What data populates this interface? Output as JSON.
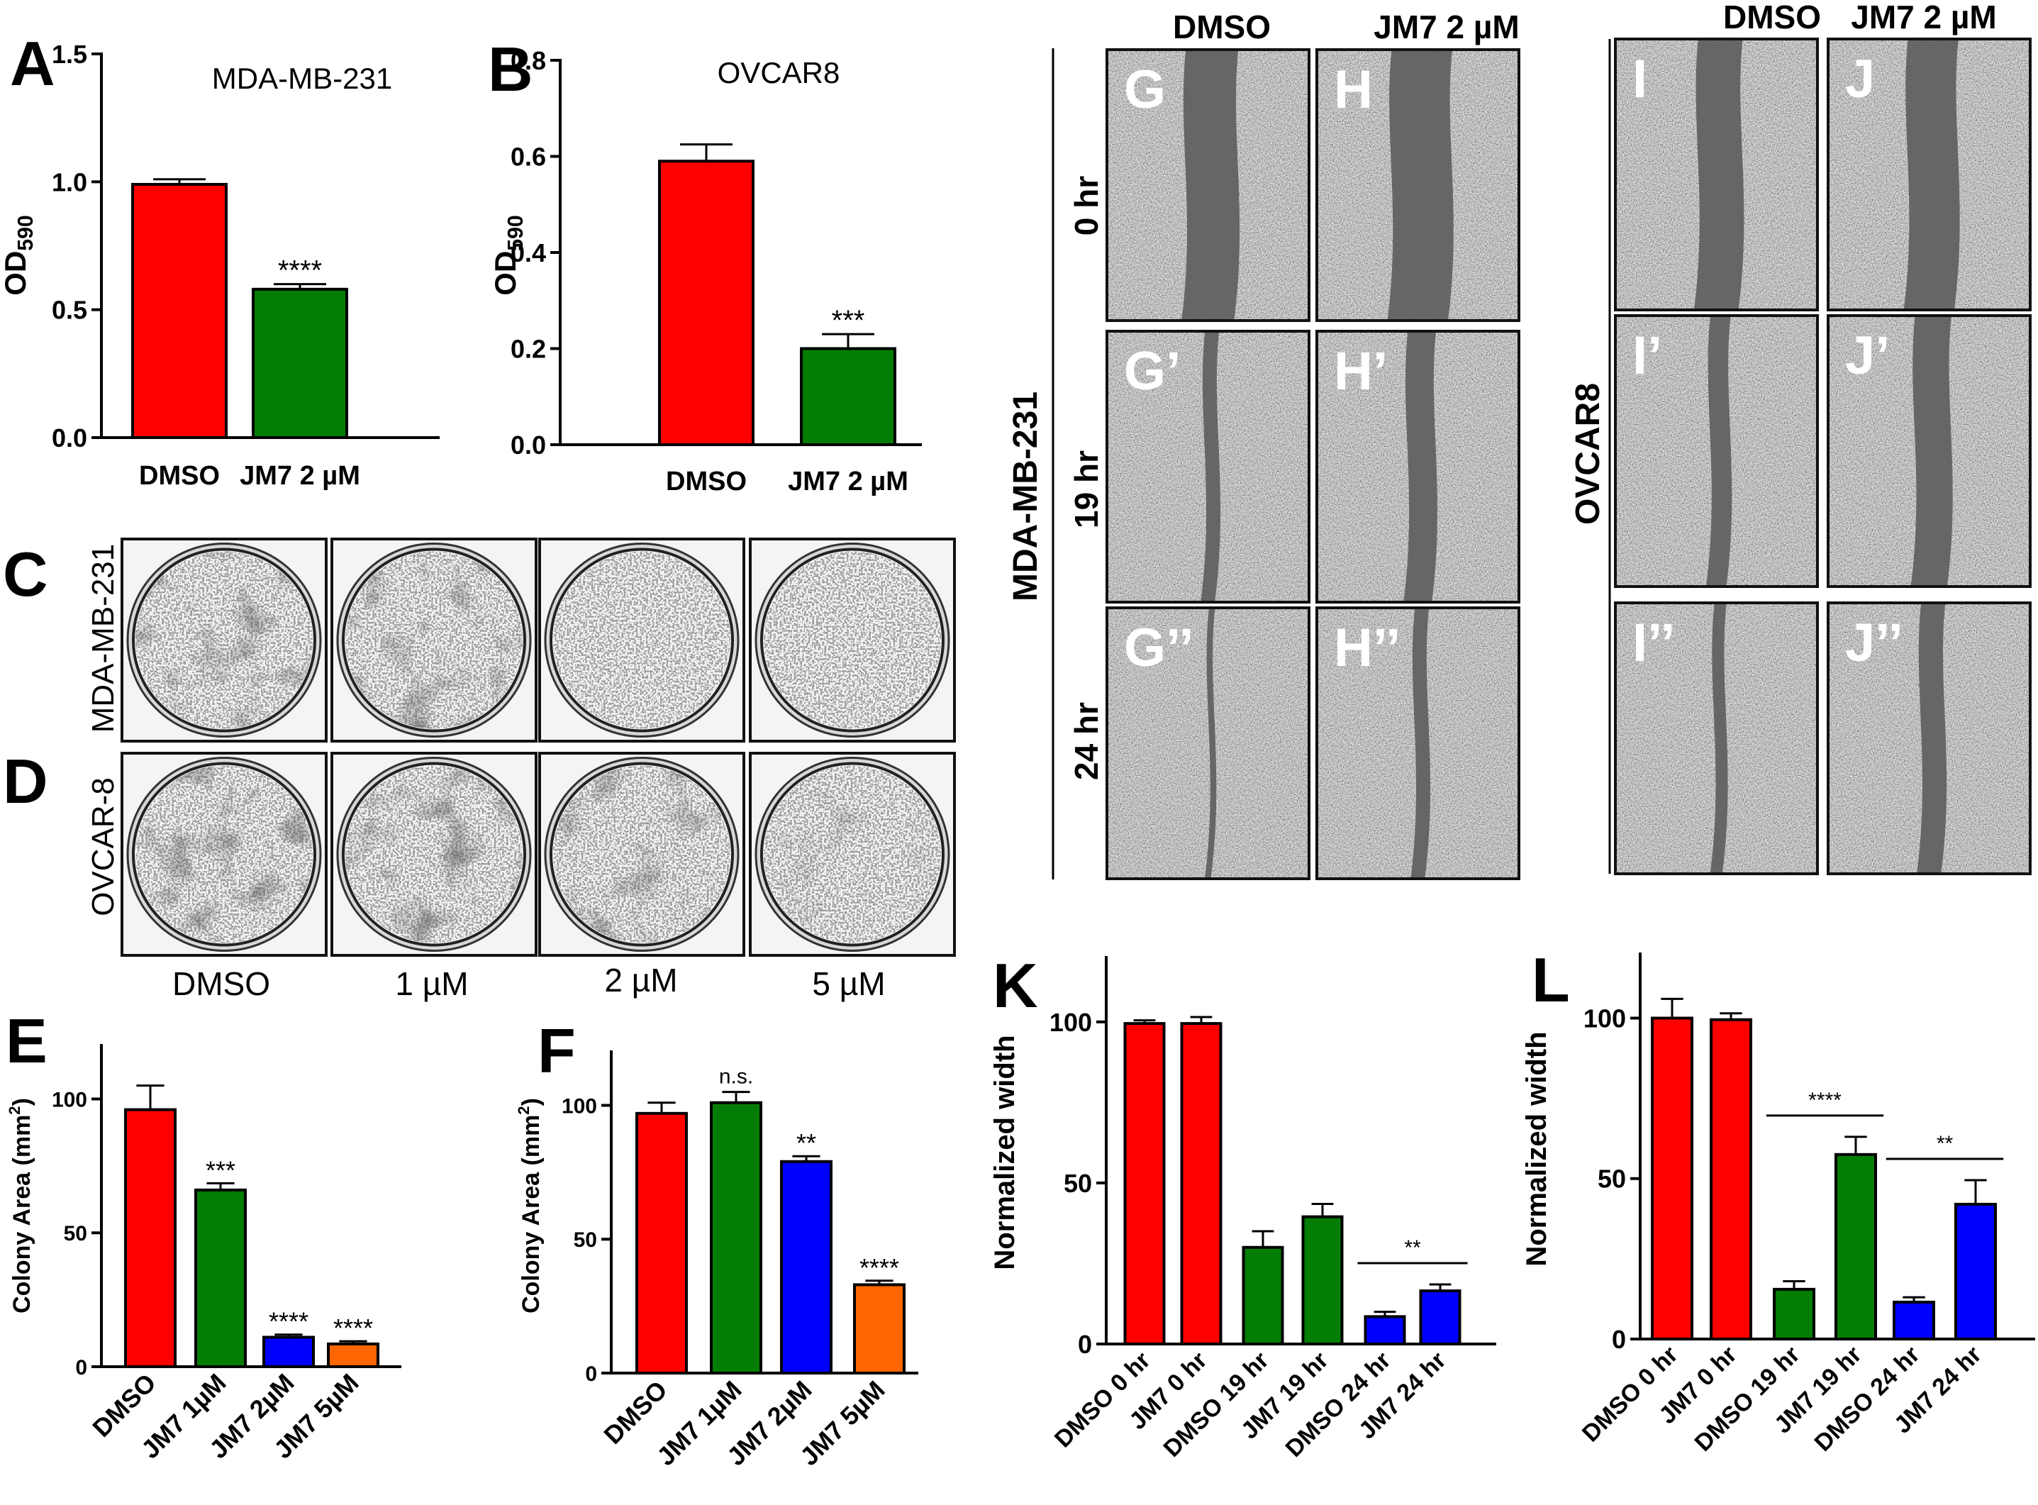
{
  "colors": {
    "dmso": "#ff0000",
    "jm7": "#047d04",
    "blue": "#0000ff",
    "orange": "#ff6600",
    "sig_line": "#000000"
  },
  "chart_data": [
    {
      "panel": "A",
      "type": "bar",
      "title": "MDA-MB-231",
      "ylabel_main": "OD",
      "ylabel_sub": "590",
      "categories": [
        "DMSO",
        "JM7 2 µM"
      ],
      "values": [
        0.99,
        0.58
      ],
      "errors": [
        0.02,
        0.02
      ],
      "bar_colors": [
        "#ff0000",
        "#047d04"
      ],
      "significance": [
        "",
        "****"
      ],
      "ylim": [
        0,
        1.5
      ],
      "yticks": [
        0.0,
        0.5,
        1.0,
        1.5
      ],
      "ytick_labels": [
        "0.0",
        "0.5",
        "1.0",
        "1.5"
      ]
    },
    {
      "panel": "B",
      "type": "bar",
      "title": "OVCAR8",
      "ylabel_main": "OD",
      "ylabel_sub": "590",
      "categories": [
        "DMSO",
        "JM7 2 µM"
      ],
      "values": [
        0.59,
        0.2
      ],
      "errors": [
        0.035,
        0.03
      ],
      "bar_colors": [
        "#ff0000",
        "#047d04"
      ],
      "significance": [
        "",
        "***"
      ],
      "ylim": [
        0,
        0.8
      ],
      "yticks": [
        0.0,
        0.2,
        0.4,
        0.6,
        0.8
      ],
      "ytick_labels": [
        "0.0",
        "0.2",
        "0.4",
        "0.6",
        "0.8"
      ]
    },
    {
      "panel": "E",
      "type": "bar",
      "title": "",
      "ylabel_main": "Colony Area (mm",
      "ylabel_sup": "2",
      "ylabel_end": ")",
      "categories": [
        "DMSO",
        "JM7 1µM",
        "JM7 2µM",
        "JM7 5µM"
      ],
      "values": [
        96,
        66,
        11,
        8.5
      ],
      "errors": [
        9,
        2.5,
        1,
        1
      ],
      "bar_colors": [
        "#ff0000",
        "#047d04",
        "#0000ff",
        "#ff6600"
      ],
      "significance": [
        "",
        "***",
        "****",
        "****"
      ],
      "ylim": [
        0,
        120
      ],
      "yticks": [
        0,
        50,
        100
      ],
      "ytick_labels": [
        "0",
        "50",
        "100"
      ]
    },
    {
      "panel": "F",
      "type": "bar",
      "title": "",
      "ylabel_main": "Colony Area (mm",
      "ylabel_sup": "2",
      "ylabel_end": ")",
      "categories": [
        "DMSO",
        "JM7 1µM",
        "JM7 2µM",
        "JM7 5µM"
      ],
      "values": [
        97,
        101,
        79,
        33
      ],
      "errors": [
        4,
        4,
        2,
        1.5
      ],
      "bar_colors": [
        "#ff0000",
        "#047d04",
        "#0000ff",
        "#ff6600"
      ],
      "significance": [
        "",
        "n.s.",
        "**",
        "****"
      ],
      "ylim": [
        0,
        120
      ],
      "yticks": [
        0,
        50,
        100
      ],
      "ytick_labels": [
        "0",
        "50",
        "100"
      ]
    },
    {
      "panel": "K",
      "type": "bar",
      "title": "",
      "ylabel_main": "Normalized width",
      "categories": [
        "DMSO 0 hr",
        "JM7 0 hr",
        "DMSO 19 hr",
        "JM7 19 hr",
        "DMSO 24 hr",
        "JM7 24 hr"
      ],
      "values": [
        99.5,
        99.5,
        30,
        39.5,
        8.5,
        16.5
      ],
      "errors": [
        1,
        2,
        5,
        4,
        1.5,
        2
      ],
      "bar_colors": [
        "#ff0000",
        "#ff0000",
        "#047d04",
        "#047d04",
        "#0000ff",
        "#0000ff"
      ],
      "significance": [
        "",
        "",
        "",
        "",
        "",
        ""
      ],
      "brackets": [
        {
          "from": 4,
          "to": 5,
          "label": "**"
        }
      ],
      "ylim": [
        0,
        120
      ],
      "yticks": [
        0,
        50,
        100
      ],
      "ytick_labels": [
        "0",
        "50",
        "100"
      ]
    },
    {
      "panel": "L",
      "type": "bar",
      "title": "",
      "ylabel_main": "Normalized width",
      "categories": [
        "DMSO 0 hr",
        "JM7 0 hr",
        "DMSO 19 hr",
        "JM7 19 hr",
        "DMSO 24 hr",
        "JM7 24 hr"
      ],
      "values": [
        100,
        99.5,
        15.5,
        57.5,
        11.5,
        42
      ],
      "errors": [
        6,
        2,
        2.5,
        5.5,
        1.5,
        7.5
      ],
      "bar_colors": [
        "#ff0000",
        "#ff0000",
        "#047d04",
        "#047d04",
        "#0000ff",
        "#0000ff"
      ],
      "significance": [
        "",
        "",
        "",
        "",
        "",
        ""
      ],
      "brackets": [
        {
          "from": 2,
          "to": 3,
          "label": "****"
        },
        {
          "from": 4,
          "to": 5,
          "label": "**"
        }
      ],
      "ylim": [
        0,
        120
      ],
      "yticks": [
        0,
        50,
        100
      ],
      "ytick_labels": [
        "0",
        "50",
        "100"
      ]
    }
  ],
  "panel_letters": {
    "A": "A",
    "B": "B",
    "C": "C",
    "D": "D",
    "E": "E",
    "F": "F",
    "G": "G",
    "K": "K",
    "L": "L"
  },
  "colony_assay": {
    "row_labels": [
      "MDA-MB-231",
      "OVCAR-8"
    ],
    "col_labels": [
      "DMSO",
      "1 µM",
      "2 µM",
      "5 µM"
    ],
    "densities": [
      [
        0.55,
        0.45,
        0.06,
        0.02
      ],
      [
        0.55,
        0.5,
        0.4,
        0.22
      ]
    ]
  },
  "wound_mda": {
    "cell_line": "MDA-MB-231",
    "col_headers": [
      "DMSO",
      "JM7 2 µM"
    ],
    "row_labels": [
      "0 hr",
      "19 hr",
      "24 hr"
    ],
    "panel_labels": [
      [
        "G",
        "H"
      ],
      [
        "G’",
        "H’"
      ],
      [
        "G’’",
        "H’’"
      ]
    ],
    "gap_fraction": [
      [
        0.26,
        0.3
      ],
      [
        0.07,
        0.14
      ],
      [
        0.03,
        0.07
      ]
    ]
  },
  "wound_ovcar": {
    "cell_line": "OVCAR8",
    "col_headers": [
      "DMSO",
      "JM7 2 µM"
    ],
    "panel_labels": [
      [
        "I",
        "J"
      ],
      [
        "I’",
        "J’"
      ],
      [
        "I’’",
        "J’’"
      ]
    ],
    "gap_fraction": [
      [
        0.22,
        0.25
      ],
      [
        0.1,
        0.18
      ],
      [
        0.06,
        0.12
      ]
    ]
  }
}
